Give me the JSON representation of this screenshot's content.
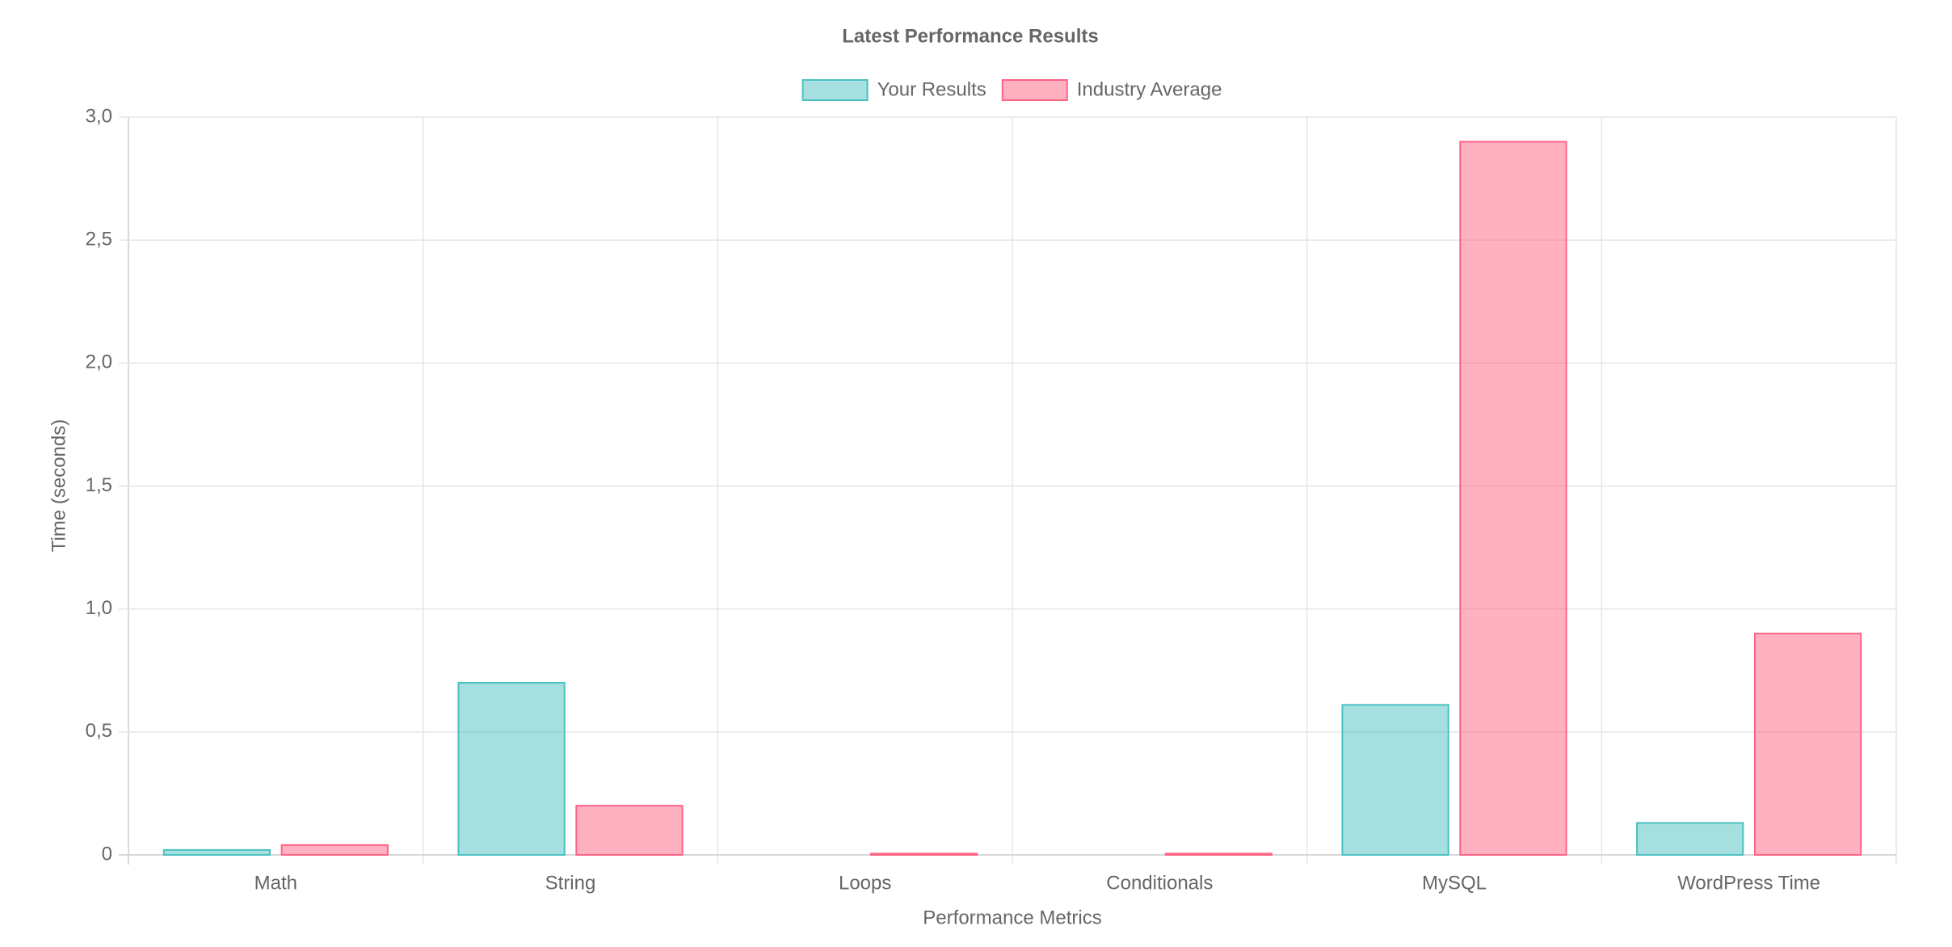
{
  "chart_data": {
    "type": "bar",
    "title": "Latest Performance Results",
    "x_label": "Performance Metrics",
    "y_label": "Time (seconds)",
    "categories": [
      "Math",
      "String",
      "Loops",
      "Conditionals",
      "MySQL",
      "WordPress Time"
    ],
    "series": [
      {
        "name": "Your Results",
        "color": "#4bc0c0",
        "values": [
          0.02,
          0.7,
          0,
          0,
          0.61,
          0.13
        ]
      },
      {
        "name": "Industry Average",
        "color": "#ff6384",
        "values": [
          0.04,
          0.2,
          0.005,
          0.005,
          2.9,
          0.9
        ]
      }
    ],
    "ylim": [
      0,
      3
    ],
    "yticks": [
      0,
      {
        "value": 0.5,
        "label": "0,5"
      },
      {
        "value": 1,
        "label": "1,0"
      },
      {
        "value": 1.5,
        "label": "1,5"
      },
      {
        "value": 2,
        "label": "2,0"
      },
      {
        "value": 2.5,
        "label": "2,5"
      },
      {
        "value": 3,
        "label": "3,0"
      }
    ],
    "grid": true,
    "legend": "top"
  }
}
